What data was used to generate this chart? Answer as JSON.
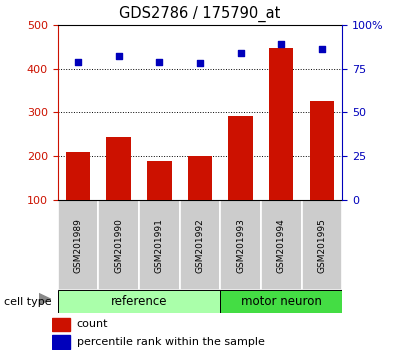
{
  "title": "GDS2786 / 175790_at",
  "samples": [
    "GSM201989",
    "GSM201990",
    "GSM201991",
    "GSM201992",
    "GSM201993",
    "GSM201994",
    "GSM201995"
  ],
  "counts": [
    210,
    243,
    188,
    200,
    292,
    447,
    325
  ],
  "percentiles": [
    79,
    82,
    79,
    78,
    84,
    89,
    86
  ],
  "n_ref": 4,
  "n_mn": 3,
  "bar_color": "#CC1100",
  "dot_color": "#0000BB",
  "left_ylim": [
    100,
    500
  ],
  "right_ylim": [
    0,
    100
  ],
  "left_yticks": [
    100,
    200,
    300,
    400,
    500
  ],
  "right_yticks": [
    0,
    25,
    50,
    75,
    100
  ],
  "right_yticklabels": [
    "0",
    "25",
    "50",
    "75",
    "100%"
  ],
  "grid_values": [
    200,
    300,
    400
  ],
  "bg_color": "#ffffff",
  "label_bg": "#cccccc",
  "ref_color": "#aaffaa",
  "mn_color": "#44dd44",
  "cell_type_label": "cell type",
  "legend_count": "count",
  "legend_pct": "percentile rank within the sample"
}
